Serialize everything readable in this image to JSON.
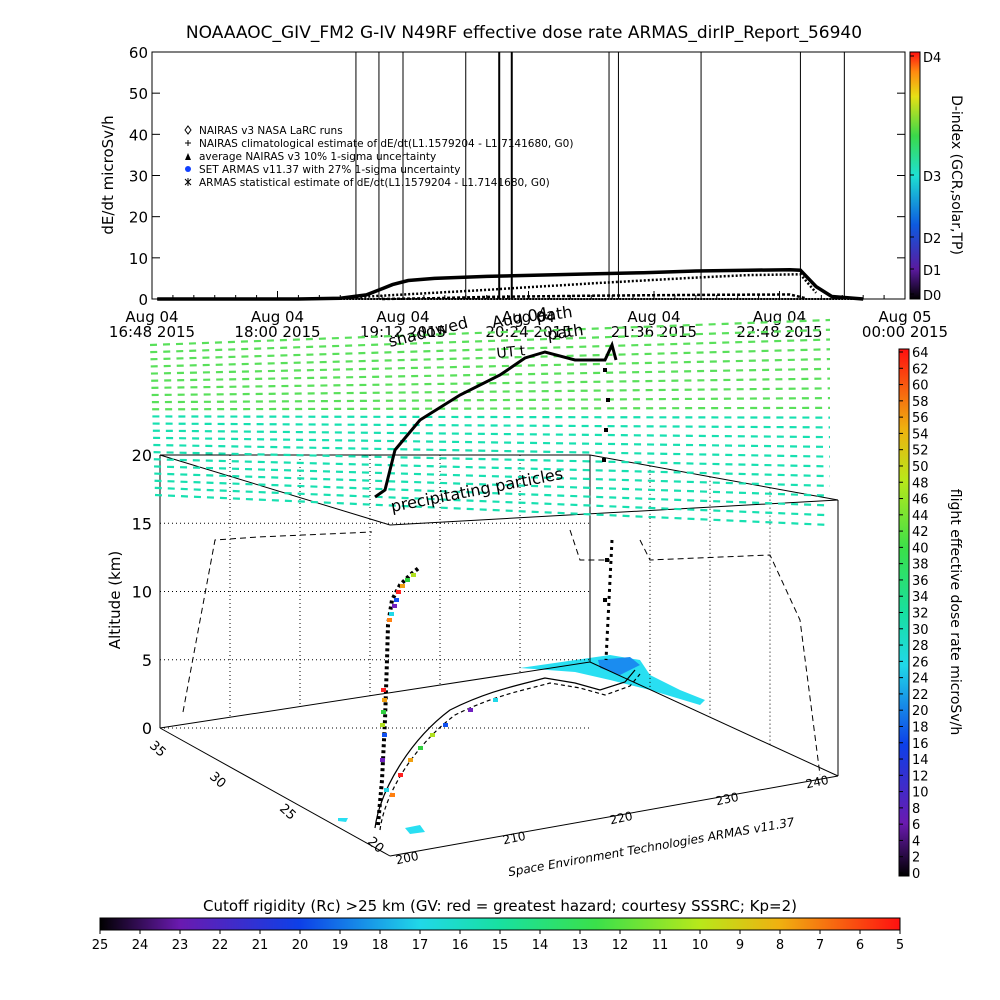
{
  "title": "NOAAAOC_GIV_FM2 G-IV    N49RF   effective dose rate ARMAS_dirIP_Report_56940",
  "colors": {
    "background": "#ffffff",
    "curve": "#000000",
    "grid": "#000000",
    "mesh_green": "#59e05a",
    "mesh_teal": "#17e0b0",
    "region_cyan": "#29dff2"
  },
  "chart_data": [
    {
      "type": "line",
      "panel": "top",
      "ylabel": "dE/dt microSv/h",
      "ylim": [
        0,
        60
      ],
      "yticks": [
        "0",
        "10",
        "20",
        "30",
        "40",
        "50",
        "60"
      ],
      "xticks": [
        {
          "top": "Aug 04",
          "bottom": "16:48 2015"
        },
        {
          "top": "Aug 04",
          "bottom": "18:00 2015"
        },
        {
          "top": "Aug 04",
          "bottom": "19:12 2015"
        },
        {
          "top": "Aug 04",
          "bottom": "20:24 2015"
        },
        {
          "top": "Aug 04",
          "bottom": "21:36 2015"
        },
        {
          "top": "Aug 04",
          "bottom": "22:48 2015"
        },
        {
          "top": "Aug 05",
          "bottom": "00:00 2015"
        }
      ],
      "xlim_hours": [
        16.8,
        24.0
      ],
      "legend": [
        {
          "symbol": "diamond",
          "label": "NAIRAS v3 NASA LaRC runs"
        },
        {
          "symbol": "plus",
          "label": "NAIRAS climatological estimate of dE/dt(L1.1579204 - L1.7141680, G0)"
        },
        {
          "symbol": "triangle",
          "label": "average NAIRAS v3 10% 1-sigma uncertainty"
        },
        {
          "symbol": "circle-blue",
          "label": "SET ARMAS v11.37 with 27% 1-sigma uncertainty"
        },
        {
          "symbol": "asterisk",
          "label": "ARMAS statistical estimate of dE/dt(L1.1579204 - L1.7141680, G0)"
        }
      ],
      "vertical_markers_hours": [
        18.75,
        18.97,
        19.2,
        19.8,
        20.12,
        20.24,
        21.17,
        21.26,
        22.05,
        23.0,
        23.42
      ],
      "series": [
        {
          "name": "NAIRAS climatological estimate",
          "x": [
            16.85,
            17.5,
            18.2,
            18.6,
            18.85,
            19.0,
            19.1,
            19.25,
            19.5,
            20.0,
            20.5,
            21.0,
            21.5,
            22.0,
            22.5,
            22.9,
            23.0,
            23.15,
            23.3,
            23.6
          ],
          "y": [
            0.0,
            0.0,
            0.0,
            0.2,
            1.0,
            2.5,
            3.5,
            4.5,
            5.0,
            5.5,
            5.8,
            6.1,
            6.4,
            6.8,
            7.0,
            7.1,
            7.0,
            3.0,
            0.6,
            0.0
          ]
        },
        {
          "name": "NAIRAS v3 NASA LaRC runs",
          "x": [
            18.6,
            19.0,
            19.5,
            20.0,
            20.5,
            21.0,
            21.5,
            22.0,
            22.5,
            23.0,
            23.15
          ],
          "y": [
            0.2,
            0.8,
            1.5,
            2.2,
            3.0,
            3.8,
            4.5,
            5.2,
            5.8,
            6.0,
            1.5
          ]
        },
        {
          "name": "ARMAS statistical estimate",
          "x": [
            19.0,
            19.5,
            20.0,
            21.0,
            22.0,
            22.9,
            23.05
          ],
          "y": [
            0.0,
            0.2,
            0.5,
            0.8,
            1.0,
            1.1,
            0.2
          ]
        }
      ],
      "colorbar": {
        "label": "D-index (GCR,solar,TP)",
        "ticks": [
          "D0",
          "D1",
          "D2",
          "D3",
          "D4"
        ]
      }
    },
    {
      "type": "scatter",
      "panel": "3d",
      "zlabel": "Altitude (km)",
      "zlim": [
        0,
        20
      ],
      "zticks": [
        "0",
        "5",
        "10",
        "15",
        "20"
      ],
      "lat_ticks": [
        "20",
        "25",
        "30",
        "35"
      ],
      "lon_ticks": [
        "200",
        "210",
        "220",
        "230",
        "240"
      ],
      "xlabel": "Space Environment Technologies ARMAS v11.37",
      "annotations": [
        "precipitating particles",
        "shadowed",
        "UT t",
        "Aug 04",
        "path",
        "path"
      ],
      "colorbar": {
        "label": "flight effective dose rate microSv/h",
        "ticks": [
          "0",
          "2",
          "4",
          "6",
          "8",
          "10",
          "12",
          "14",
          "16",
          "18",
          "20",
          "22",
          "24",
          "26",
          "28",
          "30",
          "32",
          "34",
          "36",
          "38",
          "40",
          "42",
          "44",
          "46",
          "48",
          "50",
          "52",
          "54",
          "56",
          "58",
          "60",
          "62",
          "64"
        ]
      }
    },
    {
      "type": "heatmap",
      "panel": "bottom-colorbar",
      "label": "Cutoff rigidity (Rc) >25 km (GV: red = greatest hazard; courtesy SSSRC; Kp=2)",
      "ticks": [
        "25",
        "24",
        "23",
        "22",
        "21",
        "20",
        "19",
        "18",
        "17",
        "16",
        "15",
        "14",
        "13",
        "12",
        "11",
        "10",
        "9",
        "8",
        "7",
        "6",
        "5"
      ]
    }
  ]
}
